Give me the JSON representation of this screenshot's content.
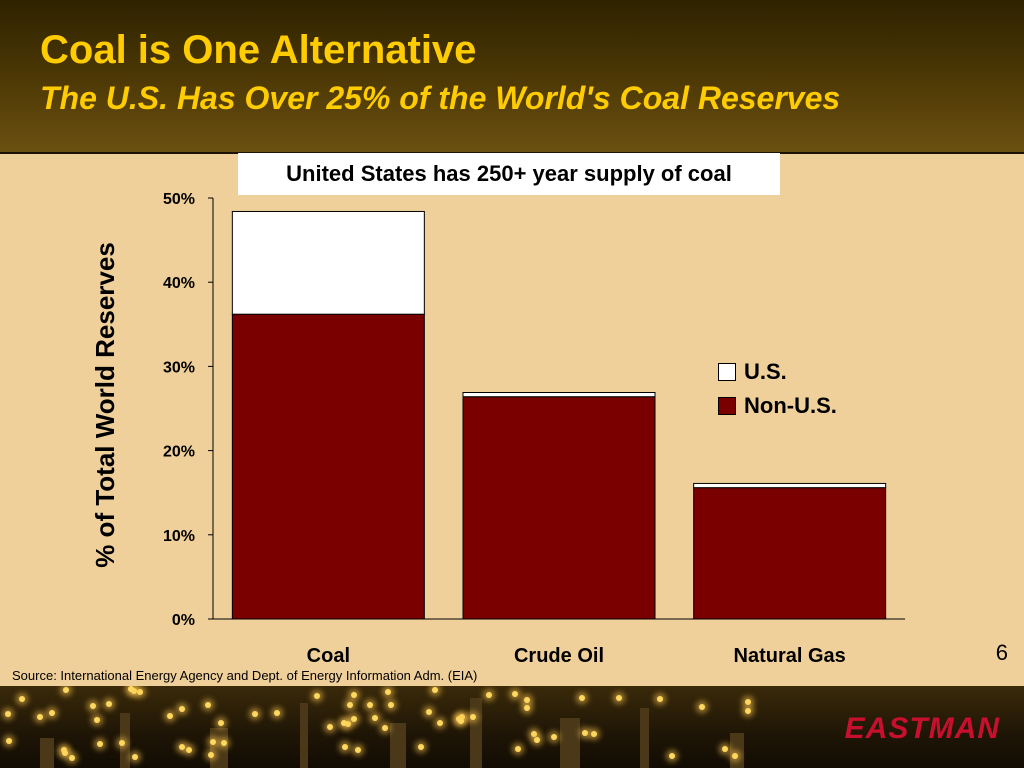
{
  "slide": {
    "title": "Coal is One Alternative",
    "subtitle": "The U.S. Has Over 25% of the World's Coal Reserves",
    "callout": "United States has 250+ year supply of coal",
    "page_number": "6",
    "source": "Source:  International Energy Agency and Dept. of Energy Information Adm. (EIA)",
    "logo_text": "EASTMAN"
  },
  "colors": {
    "non_us": "#7a0000",
    "us": "#ffffff",
    "title": "#ffcc00",
    "logo": "#c8102e"
  },
  "chart_data": {
    "type": "bar",
    "stacked": true,
    "categories": [
      "Coal",
      "Crude Oil",
      "Natural Gas"
    ],
    "series": [
      {
        "name": "Non-U.S.",
        "values": [
          36.2,
          26.4,
          15.6
        ],
        "color": "#7a0000"
      },
      {
        "name": "U.S.",
        "values": [
          12.2,
          0.5,
          0.5
        ],
        "color": "#ffffff"
      }
    ],
    "ylabel": "% of Total World Reserves",
    "xlabel": "",
    "ylim": [
      0,
      50
    ],
    "yticks": [
      0,
      10,
      20,
      30,
      40,
      50
    ],
    "ytick_labels": [
      "0%",
      "10%",
      "20%",
      "30%",
      "40%",
      "50%"
    ],
    "legend_placement": "right",
    "grid": false
  }
}
